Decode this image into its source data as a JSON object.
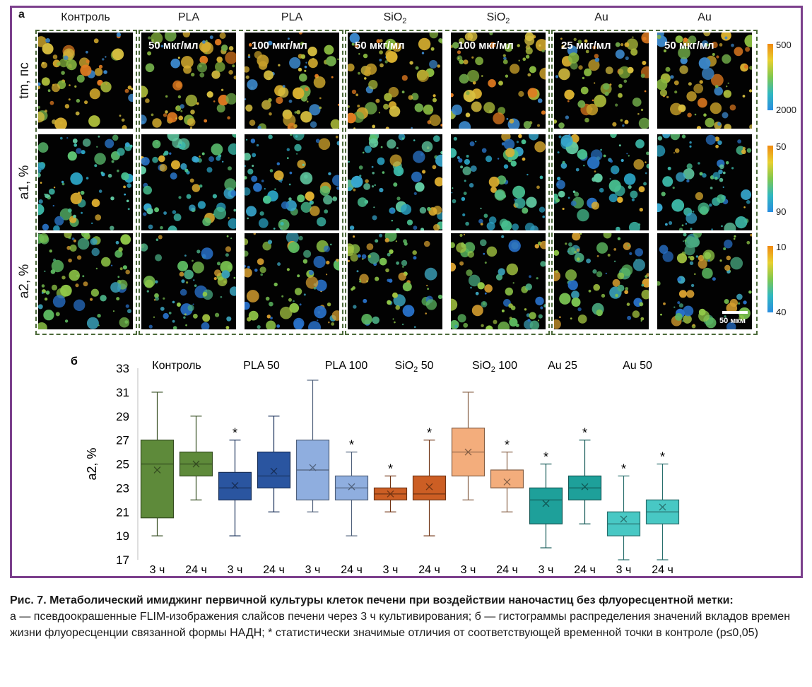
{
  "panel_a": {
    "letter": "а",
    "columns": [
      {
        "title": "Контроль",
        "sub": "",
        "conc": ""
      },
      {
        "title": "PLA",
        "sub": "",
        "conc": "50 мкг/мл"
      },
      {
        "title": "PLA",
        "sub": "",
        "conc": "100 мкг/мл"
      },
      {
        "title": "SiO",
        "sub": "2",
        "conc": "50 мкг/мл"
      },
      {
        "title": "SiO",
        "sub": "2",
        "conc": "100 мкг/мл"
      },
      {
        "title": "Au",
        "sub": "",
        "conc": "25 мкг/мл"
      },
      {
        "title": "Au",
        "sub": "",
        "conc": "50 мкг/мл"
      }
    ],
    "rows": [
      {
        "label": "tm, пс",
        "scale_top": "500",
        "scale_bottom": "2000"
      },
      {
        "label": "a1, %",
        "scale_top": "50",
        "scale_bottom": "90"
      },
      {
        "label": "a2, %",
        "scale_top": "10",
        "scale_bottom": "40"
      }
    ],
    "scale_bar": "50 мкм"
  },
  "chart_data": {
    "type": "box",
    "panel_letter": "б",
    "ylabel": "a2, %",
    "ylim": [
      17,
      33
    ],
    "yticks": [
      17,
      19,
      21,
      23,
      25,
      27,
      29,
      31,
      33
    ],
    "groups": [
      "Контроль",
      "PLA 50",
      "PLA 100",
      "SiO2 50",
      "SiO2 100",
      "Au 25",
      "Au 50"
    ],
    "group_colors": [
      "#5e8a3a",
      "#2a55a0",
      "#8faedf",
      "#cc5e24",
      "#f3ad7c",
      "#1ea09a",
      "#48c8c4"
    ],
    "x_labels": [
      "3 ч",
      "24 ч",
      "3 ч",
      "24 ч",
      "3 ч",
      "24 ч",
      "3 ч",
      "24 ч",
      "3 ч",
      "24 ч",
      "3 ч",
      "24 ч",
      "3 ч",
      "24 ч"
    ],
    "boxes": [
      {
        "group": 0,
        "time": "3 ч",
        "min": 19,
        "q1": 20.5,
        "median": 25,
        "q3": 27,
        "max": 31,
        "mean": 24.5,
        "sig": false
      },
      {
        "group": 0,
        "time": "24 ч",
        "min": 22,
        "q1": 24,
        "median": 25,
        "q3": 26,
        "max": 29,
        "mean": 25,
        "sig": false
      },
      {
        "group": 1,
        "time": "3 ч",
        "min": 19,
        "q1": 22,
        "median": 23,
        "q3": 24.3,
        "max": 27,
        "mean": 23.2,
        "sig": true
      },
      {
        "group": 1,
        "time": "24 ч",
        "min": 21,
        "q1": 23,
        "median": 24,
        "q3": 26,
        "max": 29,
        "mean": 24.4,
        "sig": false
      },
      {
        "group": 2,
        "time": "3 ч",
        "min": 21,
        "q1": 22,
        "median": 24.5,
        "q3": 27,
        "max": 32,
        "mean": 24.7,
        "sig": false
      },
      {
        "group": 2,
        "time": "24 ч",
        "min": 19,
        "q1": 22,
        "median": 23,
        "q3": 24,
        "max": 26,
        "mean": 23.1,
        "sig": true
      },
      {
        "group": 3,
        "time": "3 ч",
        "min": 21,
        "q1": 22,
        "median": 22.5,
        "q3": 23,
        "max": 24,
        "mean": 22.5,
        "sig": true
      },
      {
        "group": 3,
        "time": "24 ч",
        "min": 19,
        "q1": 22,
        "median": 22.5,
        "q3": 24,
        "max": 27,
        "mean": 23.1,
        "sig": true
      },
      {
        "group": 4,
        "time": "3 ч",
        "min": 22,
        "q1": 24,
        "median": 26,
        "q3": 28,
        "max": 31,
        "mean": 26,
        "sig": false
      },
      {
        "group": 4,
        "time": "24 ч",
        "min": 21,
        "q1": 23,
        "median": 23,
        "q3": 24.5,
        "max": 26,
        "mean": 23.5,
        "sig": true
      },
      {
        "group": 5,
        "time": "3 ч",
        "min": 18,
        "q1": 20,
        "median": 22,
        "q3": 23,
        "max": 25,
        "mean": 21.7,
        "sig": true
      },
      {
        "group": 5,
        "time": "24 ч",
        "min": 20,
        "q1": 22,
        "median": 23,
        "q3": 24,
        "max": 27,
        "mean": 23.1,
        "sig": true
      },
      {
        "group": 6,
        "time": "3 ч",
        "min": 17,
        "q1": 19,
        "median": 20,
        "q3": 21,
        "max": 24,
        "mean": 20.4,
        "sig": true
      },
      {
        "group": 6,
        "time": "24 ч",
        "min": 17,
        "q1": 20,
        "median": 21,
        "q3": 22,
        "max": 25,
        "mean": 21.4,
        "sig": true
      }
    ]
  },
  "caption": {
    "title": "Рис. 7. Метаболический имиджинг первичной культуры клеток печени при воздействии наночастиц без флуоресцентной метки:",
    "body": "а — псевдоокрашенные FLIM-изображения слайсов печени через 3 ч культивирования; б — гистограммы распределения значений вкладов времен жизни флуоресценции связанной формы НАДН; * статистически значимые отличия от соответствующей временной точки в контроле (p≤0,05)"
  }
}
